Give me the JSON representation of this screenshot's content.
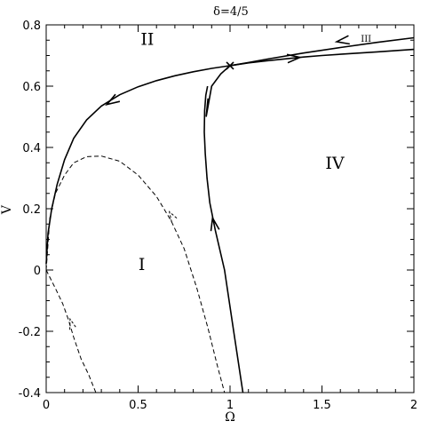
{
  "chart_data": {
    "type": "line",
    "title": "δ=4/5",
    "xlabel": "Ω",
    "ylabel": "V",
    "xlim": [
      0,
      2
    ],
    "ylim": [
      -0.4,
      0.8
    ],
    "grid": false,
    "x_ticks": [
      0,
      0.5,
      1,
      1.5,
      2
    ],
    "x_tick_labels": [
      "0",
      "0.5",
      "1",
      "1.5",
      "2"
    ],
    "y_ticks": [
      -0.4,
      -0.2,
      0,
      0.2,
      0.4,
      0.6,
      0.8
    ],
    "y_tick_labels": [
      "-0.4",
      "-0.2",
      "0",
      "0.2",
      "0.4",
      "0.6",
      "0.8"
    ],
    "fixed_point": {
      "x": 1.0,
      "y": 0.667
    },
    "region_labels": [
      {
        "text": "II",
        "x": 0.55,
        "y": 0.735,
        "size": "large"
      },
      {
        "text": "I",
        "x": 0.52,
        "y": 0.0,
        "size": "large"
      },
      {
        "text": "IV",
        "x": 1.57,
        "y": 0.33,
        "size": "large"
      },
      {
        "text": "III",
        "x": 1.74,
        "y": 0.745,
        "size": "small"
      }
    ],
    "series": [
      {
        "style": "solid",
        "x": [
          0.0,
          0.01,
          0.03,
          0.06,
          0.1,
          0.15,
          0.22,
          0.3,
          0.4,
          0.5,
          0.6,
          0.7,
          0.8,
          0.9,
          1.0,
          1.1,
          1.2,
          1.4,
          1.6,
          1.8,
          2.0
        ],
        "y": [
          0.02,
          0.12,
          0.2,
          0.28,
          0.36,
          0.43,
          0.49,
          0.535,
          0.572,
          0.598,
          0.618,
          0.634,
          0.647,
          0.658,
          0.667,
          0.677,
          0.688,
          0.708,
          0.726,
          0.743,
          0.758
        ],
        "arrows": [
          {
            "x": 0.33,
            "y": 0.54,
            "dir": "backward"
          },
          {
            "x": 1.58,
            "y": 0.745,
            "dir": "backward"
          }
        ]
      },
      {
        "style": "solid",
        "x": [
          0.88,
          0.87,
          0.9,
          0.95,
          1.0,
          1.1,
          1.2,
          1.3,
          1.4,
          1.5,
          1.6,
          1.8,
          2.0
        ],
        "y": [
          0.56,
          0.5,
          0.6,
          0.64,
          0.667,
          0.676,
          0.683,
          0.689,
          0.695,
          0.7,
          0.704,
          0.712,
          0.72
        ],
        "arrows": [
          {
            "x": 1.38,
            "y": 0.694,
            "dir": "forward"
          }
        ]
      },
      {
        "style": "solid",
        "x": [
          1.07,
          1.02,
          0.97,
          0.92,
          0.89,
          0.875,
          0.865,
          0.86,
          0.862,
          0.868,
          0.878
        ],
        "y": [
          -0.4,
          -0.2,
          0.0,
          0.13,
          0.22,
          0.3,
          0.38,
          0.45,
          0.52,
          0.57,
          0.6
        ],
        "arrows": [
          {
            "x": 0.905,
            "y": 0.17,
            "dir": "forward"
          }
        ]
      },
      {
        "style": "dashed",
        "x": [
          0.0,
          0.02,
          0.05,
          0.1,
          0.15,
          0.22,
          0.3,
          0.4,
          0.5,
          0.6,
          0.68,
          0.75,
          0.82,
          0.88,
          0.93,
          0.97
        ],
        "y": [
          0.0,
          0.17,
          0.25,
          0.31,
          0.35,
          0.37,
          0.372,
          0.355,
          0.31,
          0.24,
          0.16,
          0.07,
          -0.06,
          -0.19,
          -0.31,
          -0.4
        ],
        "arrows": [
          {
            "x": 0.67,
            "y": 0.19,
            "dir": "backward"
          }
        ]
      },
      {
        "style": "dashed",
        "x": [
          0.0,
          0.05,
          0.09,
          0.12,
          0.15,
          0.19,
          0.23,
          0.27
        ],
        "y": [
          0.0,
          -0.06,
          -0.11,
          -0.16,
          -0.22,
          -0.29,
          -0.34,
          -0.4
        ],
        "arrows": [
          {
            "x": 0.13,
            "y": -0.16,
            "dir": "backward"
          }
        ]
      }
    ]
  }
}
